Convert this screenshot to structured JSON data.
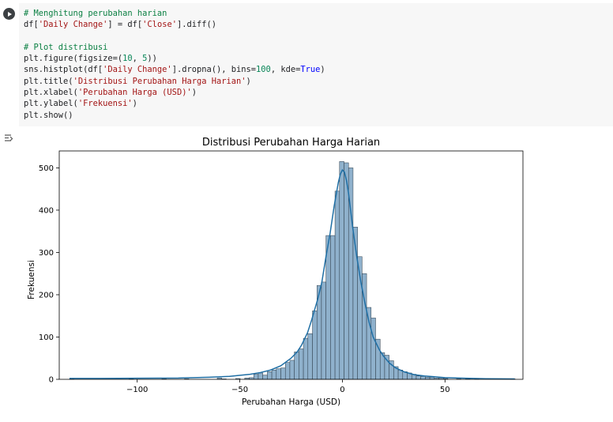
{
  "cell": {
    "code_lines": [
      [
        {
          "c": "cm",
          "t": "# Menghitung perubahan harian"
        }
      ],
      [
        {
          "c": "",
          "t": "df["
        },
        {
          "c": "st",
          "t": "'Daily Change'"
        },
        {
          "c": "",
          "t": "] = df["
        },
        {
          "c": "st",
          "t": "'Close'"
        },
        {
          "c": "",
          "t": "].diff()"
        }
      ],
      [
        {
          "c": "",
          "t": ""
        }
      ],
      [
        {
          "c": "cm",
          "t": "# Plot distribusi"
        }
      ],
      [
        {
          "c": "",
          "t": "plt.figure(figsize=("
        },
        {
          "c": "nu",
          "t": "10"
        },
        {
          "c": "",
          "t": ", "
        },
        {
          "c": "nu",
          "t": "5"
        },
        {
          "c": "",
          "t": "))"
        }
      ],
      [
        {
          "c": "",
          "t": "sns.histplot(df["
        },
        {
          "c": "st",
          "t": "'Daily Change'"
        },
        {
          "c": "",
          "t": "].dropna(), bins="
        },
        {
          "c": "nu",
          "t": "100"
        },
        {
          "c": "",
          "t": ", kde="
        },
        {
          "c": "kw",
          "t": "True"
        },
        {
          "c": "",
          "t": ")"
        }
      ],
      [
        {
          "c": "",
          "t": "plt.title("
        },
        {
          "c": "st",
          "t": "'Distribusi Perubahan Harga Harian'"
        },
        {
          "c": "",
          "t": ")"
        }
      ],
      [
        {
          "c": "",
          "t": "plt.xlabel("
        },
        {
          "c": "st",
          "t": "'Perubahan Harga (USD)'"
        },
        {
          "c": "",
          "t": ")"
        }
      ],
      [
        {
          "c": "",
          "t": "plt.ylabel("
        },
        {
          "c": "st",
          "t": "'Frekuensi'"
        },
        {
          "c": "",
          "t": ")"
        }
      ],
      [
        {
          "c": "",
          "t": "plt.show()"
        }
      ]
    ]
  },
  "icons": {
    "run": "play-icon",
    "output": "output-toggle-icon"
  },
  "chart_data": {
    "type": "bar",
    "title": "Distribusi Perubahan Harga Harian",
    "xlabel": "Perubahan Harga (USD)",
    "ylabel": "Frekuensi",
    "xlim": [
      -138,
      88
    ],
    "ylim": [
      0,
      540
    ],
    "xticks": [
      -100,
      -50,
      0,
      50
    ],
    "xtick_labels": [
      "−100",
      "−50",
      "0",
      "50"
    ],
    "yticks": [
      0,
      100,
      200,
      300,
      400,
      500
    ],
    "ytick_labels": [
      "0",
      "100",
      "200",
      "300",
      "400",
      "500"
    ],
    "grid": false,
    "bar_color": "#8fb1cc",
    "bar_edge": "#2b3a47",
    "kde_color": "#1f6fa5",
    "bins": [
      {
        "x0": -133,
        "x1": -130.8,
        "v": 1
      },
      {
        "x0": -104,
        "x1": -101.8,
        "v": 1
      },
      {
        "x0": -88,
        "x1": -85.8,
        "v": 1
      },
      {
        "x0": -77,
        "x1": -74.8,
        "v": 1
      },
      {
        "x0": -61,
        "x1": -58.8,
        "v": 3
      },
      {
        "x0": -58.8,
        "x1": -56.6,
        "v": 1
      },
      {
        "x0": -52,
        "x1": -49.8,
        "v": 2
      },
      {
        "x0": -47.6,
        "x1": -45.4,
        "v": 3
      },
      {
        "x0": -45.4,
        "x1": -43.2,
        "v": 4
      },
      {
        "x0": -43.2,
        "x1": -41.0,
        "v": 12
      },
      {
        "x0": -41.0,
        "x1": -38.8,
        "v": 15
      },
      {
        "x0": -38.8,
        "x1": -36.6,
        "v": 10
      },
      {
        "x0": -36.6,
        "x1": -34.4,
        "v": 18
      },
      {
        "x0": -34.4,
        "x1": -32.2,
        "v": 22
      },
      {
        "x0": -32.2,
        "x1": -30.0,
        "v": 25
      },
      {
        "x0": -30.0,
        "x1": -27.8,
        "v": 27
      },
      {
        "x0": -27.8,
        "x1": -25.6,
        "v": 40
      },
      {
        "x0": -25.6,
        "x1": -23.4,
        "v": 45
      },
      {
        "x0": -23.4,
        "x1": -21.2,
        "v": 65
      },
      {
        "x0": -21.2,
        "x1": -19.0,
        "v": 72
      },
      {
        "x0": -19.0,
        "x1": -16.8,
        "v": 97
      },
      {
        "x0": -16.8,
        "x1": -14.6,
        "v": 108
      },
      {
        "x0": -14.6,
        "x1": -12.4,
        "v": 162
      },
      {
        "x0": -12.4,
        "x1": -10.2,
        "v": 222
      },
      {
        "x0": -10.2,
        "x1": -8.0,
        "v": 230
      },
      {
        "x0": -8.0,
        "x1": -5.8,
        "v": 340
      },
      {
        "x0": -5.8,
        "x1": -3.6,
        "v": 340
      },
      {
        "x0": -3.6,
        "x1": -1.4,
        "v": 445
      },
      {
        "x0": -1.4,
        "x1": 0.8,
        "v": 515
      },
      {
        "x0": 0.8,
        "x1": 3.0,
        "v": 512
      },
      {
        "x0": 3.0,
        "x1": 5.2,
        "v": 500
      },
      {
        "x0": 5.2,
        "x1": 7.4,
        "v": 360
      },
      {
        "x0": 7.4,
        "x1": 9.6,
        "v": 290
      },
      {
        "x0": 9.6,
        "x1": 11.8,
        "v": 250
      },
      {
        "x0": 11.8,
        "x1": 14.0,
        "v": 170
      },
      {
        "x0": 14.0,
        "x1": 16.2,
        "v": 145
      },
      {
        "x0": 16.2,
        "x1": 18.4,
        "v": 95
      },
      {
        "x0": 18.4,
        "x1": 20.6,
        "v": 63
      },
      {
        "x0": 20.6,
        "x1": 22.8,
        "v": 57
      },
      {
        "x0": 22.8,
        "x1": 25.0,
        "v": 44
      },
      {
        "x0": 25.0,
        "x1": 27.2,
        "v": 30
      },
      {
        "x0": 27.2,
        "x1": 29.4,
        "v": 22
      },
      {
        "x0": 29.4,
        "x1": 31.6,
        "v": 18
      },
      {
        "x0": 31.6,
        "x1": 33.8,
        "v": 15
      },
      {
        "x0": 33.8,
        "x1": 36.0,
        "v": 12
      },
      {
        "x0": 36.0,
        "x1": 38.2,
        "v": 8
      },
      {
        "x0": 38.2,
        "x1": 40.4,
        "v": 7
      },
      {
        "x0": 40.4,
        "x1": 42.6,
        "v": 5
      },
      {
        "x0": 42.6,
        "x1": 44.8,
        "v": 5
      },
      {
        "x0": 44.8,
        "x1": 47.0,
        "v": 3
      },
      {
        "x0": 47.0,
        "x1": 49.2,
        "v": 3
      },
      {
        "x0": 49.2,
        "x1": 51.4,
        "v": 2
      },
      {
        "x0": 55.6,
        "x1": 57.8,
        "v": 1
      },
      {
        "x0": 60.0,
        "x1": 62.2,
        "v": 1
      },
      {
        "x0": 64.4,
        "x1": 66.6,
        "v": 1
      },
      {
        "x0": 82.0,
        "x1": 84.2,
        "v": 1
      }
    ],
    "kde": [
      [
        -133,
        2
      ],
      [
        -120,
        2
      ],
      [
        -100,
        2.5
      ],
      [
        -80,
        3
      ],
      [
        -65,
        5
      ],
      [
        -55,
        7
      ],
      [
        -45,
        12
      ],
      [
        -40,
        16
      ],
      [
        -35,
        22
      ],
      [
        -30,
        32
      ],
      [
        -25,
        50
      ],
      [
        -22,
        65
      ],
      [
        -20,
        80
      ],
      [
        -17,
        110
      ],
      [
        -15,
        140
      ],
      [
        -12,
        190
      ],
      [
        -10,
        230
      ],
      [
        -8,
        290
      ],
      [
        -6,
        345
      ],
      [
        -4,
        410
      ],
      [
        -2,
        465
      ],
      [
        -1,
        485
      ],
      [
        0,
        495
      ],
      [
        1,
        490
      ],
      [
        2,
        470
      ],
      [
        3,
        440
      ],
      [
        4,
        400
      ],
      [
        5,
        360
      ],
      [
        7,
        290
      ],
      [
        9,
        230
      ],
      [
        11,
        180
      ],
      [
        13,
        135
      ],
      [
        15,
        100
      ],
      [
        18,
        70
      ],
      [
        20,
        55
      ],
      [
        23,
        38
      ],
      [
        26,
        27
      ],
      [
        30,
        18
      ],
      [
        35,
        11
      ],
      [
        40,
        8
      ],
      [
        45,
        6
      ],
      [
        50,
        4
      ],
      [
        60,
        2.5
      ],
      [
        70,
        1.5
      ],
      [
        84,
        1
      ]
    ]
  }
}
